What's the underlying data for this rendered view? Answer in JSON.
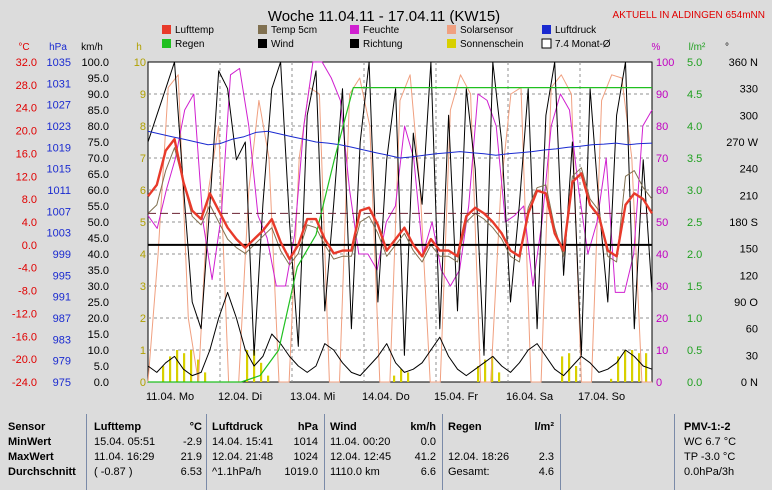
{
  "title": "Woche 11.04.11 - 17.04.11 (KW15)",
  "aktuell": "AKTUELL IN ALDINGEN 654mNN",
  "units": {
    "celsius": "°C",
    "hpa": "hPa",
    "kmh": "km/h",
    "h": "h",
    "percent": "%",
    "lm2": "l/m²",
    "deg": "°"
  },
  "legend": [
    {
      "label": "Lufttemp",
      "color": "#e83a2a"
    },
    {
      "label": "Temp 5cm",
      "color": "#807050"
    },
    {
      "label": "Feuchte",
      "color": "#d020d0"
    },
    {
      "label": "Solarsensor",
      "color": "#f0a080"
    },
    {
      "label": "Luftdruck",
      "color": "#1a2ad0"
    },
    {
      "label": "Regen",
      "color": "#20c020"
    },
    {
      "label": "Wind",
      "color": "#000000"
    },
    {
      "label": "Richtung",
      "color": "#000000"
    },
    {
      "label": "Sonnenschein",
      "color": "#d8d000"
    },
    {
      "label": "7.4 Monat-Ø",
      "color": "#ffffff"
    }
  ],
  "colors": {
    "plot_bg": "#ffffff",
    "grid": "#909090",
    "temp_axis": "#e00000",
    "hpa_axis": "#1a2ad0",
    "green_axis": "#20a020",
    "pink_axis": "#c000c0",
    "sun_axis": "#b0a000"
  },
  "chart_data": {
    "type": "line",
    "x_labels": [
      "11.04. Mo",
      "12.04. Di",
      "13.04. Mi",
      "14.04. Do",
      "15.04. Fr",
      "16.04. Sa",
      "17.04. So"
    ],
    "axes": {
      "temp_c": {
        "ticks": [
          "32.0",
          "28.0",
          "24.0",
          "20.0",
          "16.0",
          "12.0",
          "8.0",
          "4.0",
          "0.0",
          "-4.0",
          "-8.0",
          "-12.0",
          "-16.0",
          "-20.0",
          "-24.0"
        ],
        "range": [
          -24,
          32
        ]
      },
      "pressure_hpa": {
        "ticks": [
          "1035",
          "1031",
          "1027",
          "1023",
          "1019",
          "1015",
          "1011",
          "1007",
          "1003",
          "999",
          "995",
          "991",
          "987",
          "983",
          "979",
          "975"
        ],
        "range": [
          975,
          1035
        ]
      },
      "wind_kmh": {
        "ticks": [
          "100.0",
          "95.0",
          "90.0",
          "85.0",
          "80.0",
          "75.0",
          "70.0",
          "65.0",
          "60.0",
          "55.0",
          "50.0",
          "45.0",
          "40.0",
          "35.0",
          "30.0",
          "25.0",
          "20.0",
          "15.0",
          "10.0",
          "5.0",
          "0.0"
        ],
        "range": [
          0,
          100
        ]
      },
      "sun_h": {
        "ticks": [
          "10",
          "9",
          "8",
          "7",
          "6",
          "5",
          "4",
          "3",
          "2",
          "1",
          "0"
        ],
        "range": [
          0,
          10
        ]
      },
      "humidity_pct": {
        "ticks": [
          "100",
          "90",
          "80",
          "70",
          "60",
          "50",
          "40",
          "30",
          "20",
          "10",
          "0"
        ],
        "range": [
          0,
          100
        ]
      },
      "rain_lm2": {
        "ticks": [
          "5.0",
          "4.5",
          "4.0",
          "3.5",
          "3.0",
          "2.5",
          "2.0",
          "1.5",
          "1.0",
          "0.5",
          "0.0"
        ],
        "range": [
          0,
          5
        ]
      },
      "direction_deg": {
        "ticks": [
          "360 N",
          "330",
          "300",
          "270 W",
          "240",
          "210",
          "180 S",
          "150",
          "120",
          "90 O",
          "60",
          "30",
          "0 N"
        ],
        "range": [
          0,
          360
        ]
      }
    },
    "series": [
      {
        "name": "Lufttemp",
        "axis": "temp_c",
        "values": [
          8.5,
          10.5,
          16.5,
          18.5,
          11,
          6,
          4.5,
          9,
          6,
          3,
          1,
          -0.5,
          1,
          2.5,
          4.5,
          0.5,
          -2.5,
          0,
          4.5,
          4.5,
          1,
          -1.5,
          -1,
          -1,
          6,
          6.5,
          3.5,
          -1,
          1,
          3,
          0,
          -2,
          1,
          -1,
          -1,
          -2,
          5,
          6.5,
          5.5,
          4,
          2,
          -1,
          -2,
          5.5,
          9.5,
          9,
          2,
          -1,
          11,
          12.5,
          7,
          5,
          -1,
          -2,
          7,
          9,
          8,
          5.5
        ]
      },
      {
        "name": "Temp 5cm",
        "axis": "temp_c",
        "values": [
          5.5,
          7,
          13,
          17,
          11,
          5,
          3.5,
          7,
          4,
          1,
          -0.5,
          -1.5,
          0,
          1.5,
          3,
          -1,
          -3.5,
          -1.5,
          3.5,
          3,
          0,
          -2.5,
          -2,
          -2,
          4,
          5,
          2,
          -2,
          0,
          2,
          -1,
          -3,
          0,
          -2,
          -2,
          -3,
          4,
          5.5,
          4.5,
          3,
          1,
          -2,
          -3,
          6.5,
          10,
          10.5,
          3,
          -2,
          12,
          13.5,
          8,
          6,
          -2,
          -3,
          12,
          13,
          10,
          8
        ]
      },
      {
        "name": "Luftdruck",
        "axis": "pressure_hpa",
        "values": [
          1022,
          1021.5,
          1021,
          1020.5,
          1020,
          1019.5,
          1019.7,
          1020.5,
          1021,
          1021.8,
          1022,
          1021.5,
          1021,
          1020.5,
          1020,
          1019.8,
          1019.5,
          1019,
          1018.5,
          1018,
          1017.5,
          1017,
          1017.2,
          1017.5,
          1017.8,
          1018,
          1018.2,
          1018,
          1017.8,
          1017.5,
          1017.8,
          1018,
          1018.2,
          1018.5,
          1018.7,
          1019,
          1019.2,
          1019.5,
          1019.6,
          1019.8,
          1019.5,
          1019.7,
          1019.8
        ]
      },
      {
        "name": "Feuchte",
        "axis": "humidity_pct",
        "values": [
          52,
          48,
          60,
          70,
          85,
          90,
          50,
          32,
          52,
          96,
          98,
          80,
          52,
          45,
          30,
          30,
          46,
          80,
          100,
          100,
          95,
          88,
          60,
          40,
          40,
          35,
          50,
          55,
          80,
          70,
          40,
          50,
          35,
          30,
          35,
          55,
          90,
          88,
          80,
          50,
          52,
          55,
          30,
          50,
          80,
          90,
          85,
          60,
          40,
          50,
          70,
          28,
          28,
          40,
          80,
          85
        ]
      },
      {
        "name": "Solarsensor",
        "axis": "humidity_pct",
        "values": [
          0,
          40,
          92,
          96,
          20,
          0,
          60,
          80,
          0,
          0,
          60,
          88,
          70,
          0,
          0,
          70,
          92,
          90,
          0,
          0,
          90,
          95,
          80,
          0,
          0,
          88,
          96,
          60,
          0,
          0,
          85,
          96,
          90,
          0,
          0,
          60,
          90,
          92,
          0,
          0,
          92,
          96,
          90,
          0,
          0,
          88,
          96,
          95,
          70,
          0,
          0
        ]
      },
      {
        "name": "Wind",
        "axis": "wind_kmh",
        "values": [
          5,
          3,
          6,
          8,
          4,
          2,
          3,
          10,
          20,
          28,
          20,
          10,
          5,
          8,
          15,
          12,
          8,
          5,
          3,
          5,
          12,
          10,
          6,
          3,
          2,
          5,
          8,
          12,
          6,
          3,
          4,
          6,
          10,
          14,
          8,
          4,
          2,
          4,
          6,
          8,
          5,
          3,
          6,
          10,
          12,
          8,
          4,
          2,
          5,
          8,
          6,
          3,
          4,
          6,
          10,
          8,
          5,
          4
        ]
      },
      {
        "name": "Richtung",
        "axis": "direction_deg",
        "values": [
          270,
          300,
          330,
          360,
          220,
          90,
          60,
          200,
          350,
          330,
          250,
          270,
          30,
          200,
          330,
          360,
          180,
          40,
          300,
          350,
          80,
          200,
          330,
          60,
          270,
          360,
          90,
          250,
          330,
          30,
          280,
          200,
          360,
          60,
          300,
          80,
          330,
          240,
          30,
          360,
          270,
          90,
          200,
          330,
          60,
          300,
          360,
          120,
          270,
          30,
          330,
          200,
          90,
          300,
          360,
          60,
          250,
          100
        ]
      },
      {
        "name": "Regen",
        "axis": "rain_lm2",
        "values": [
          0,
          0,
          0,
          0,
          0,
          0,
          0.1,
          0.5,
          1.8,
          2.3,
          3.5,
          4.6,
          4.6,
          4.6,
          4.6,
          4.6,
          4.6,
          4.6,
          4.6,
          4.6,
          4.6,
          4.6,
          4.6,
          4.6,
          4.6,
          4.6,
          4.6,
          4.6
        ]
      },
      {
        "name": "Sonnenschein",
        "axis": "sun_h",
        "values": [
          0,
          0,
          0.5,
          0.8,
          1,
          0.9,
          1,
          0.7,
          0.3,
          0,
          0,
          0,
          0,
          0,
          1,
          1,
          0.6,
          0.2,
          0,
          0,
          0,
          0,
          0,
          0,
          0,
          0,
          0,
          0,
          0,
          0,
          0,
          0,
          0,
          0,
          0,
          0.2,
          0.4,
          0.3,
          0,
          0,
          0,
          0,
          0,
          0,
          0,
          0,
          0,
          0.5,
          0.7,
          0.8,
          0.3,
          0,
          0,
          0,
          0,
          0,
          0,
          0,
          0,
          0.8,
          0.9,
          0.5,
          0,
          0,
          0,
          0,
          0.1,
          0.8,
          1,
          1,
          0.9,
          0.9
        ]
      }
    ],
    "reference_lines": [
      {
        "name": "7.4 Monat-Ø",
        "axis": "temp_c",
        "value": 5.5
      }
    ]
  },
  "table": {
    "sensor": {
      "header": "Sensor",
      "rows": [
        "MinWert",
        "MaxWert",
        "Durchschnitt"
      ]
    },
    "lufttemp": {
      "header": "Lufttemp",
      "unit": "°C",
      "rows": [
        [
          "15.04.  05:51",
          "-2.9"
        ],
        [
          "11.04.  16:29",
          "21.9"
        ],
        [
          "( -0.87 )",
          "6.53"
        ]
      ]
    },
    "luftdruck": {
      "header": "Luftdruck",
      "unit": "hPa",
      "rows": [
        [
          "14.04.  15:41",
          "1014"
        ],
        [
          "12.04.  21:48",
          "1024"
        ],
        [
          "^1.1hPa/h",
          "1019.0"
        ]
      ]
    },
    "wind": {
      "header": "Wind",
      "unit": "km/h",
      "rows": [
        [
          "11.04.  00:20",
          "0.0"
        ],
        [
          "12.04.  12:45",
          "41.2"
        ],
        [
          "1110.0 km",
          "6.6"
        ]
      ]
    },
    "regen": {
      "header": "Regen",
      "unit": "l/m²",
      "rows": [
        [
          "",
          ""
        ],
        [
          "12.04.  18:26",
          "2.3"
        ],
        [
          "Gesamt:",
          "4.6"
        ]
      ]
    },
    "pmv": {
      "header": "PMV-1:-2",
      "rows": [
        "WC 6.7 °C",
        "TP -3.0 °C",
        "0.0hPa/3h"
      ]
    }
  }
}
